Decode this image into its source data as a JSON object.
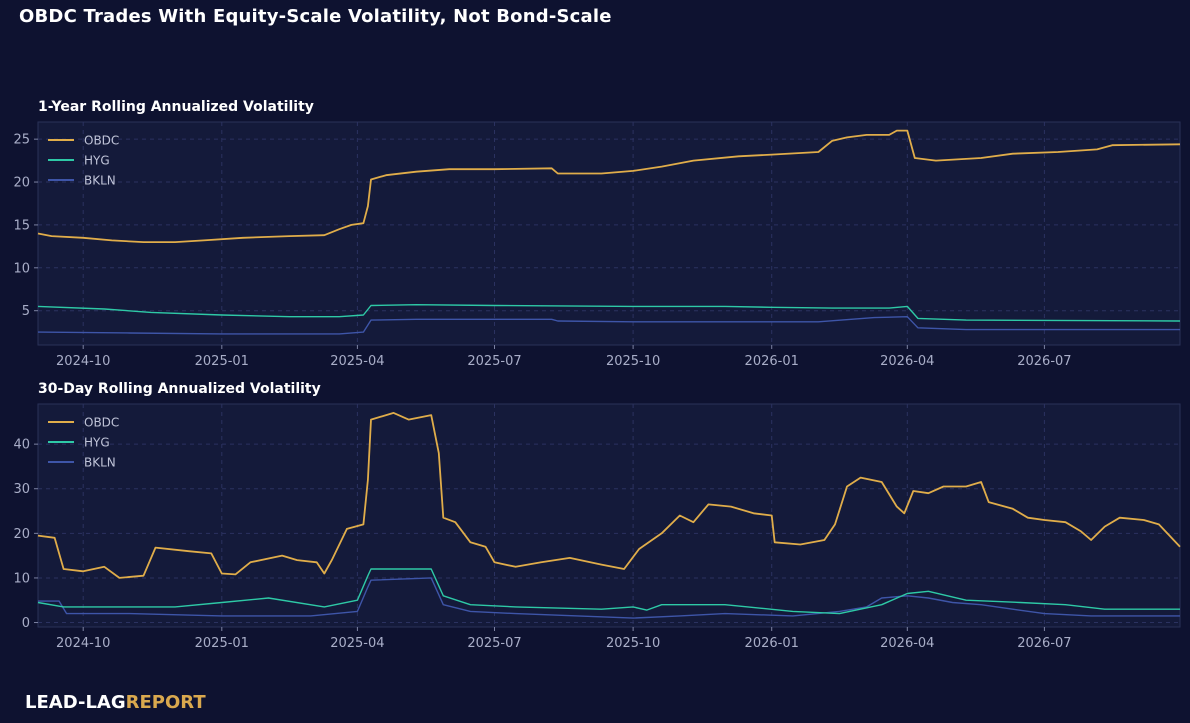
{
  "title": "OBDC Trades With Equity-Scale Volatility, Not Bond-Scale",
  "brand": {
    "part1": "LEAD-LAG",
    "part2": "REPORT"
  },
  "colors": {
    "background": "#0e1230",
    "plot_background": "#141a3a",
    "OBDC": "#e0ad4a",
    "HYG": "#2ec9a6",
    "BKLN": "#3e55a8"
  },
  "chart_data": [
    {
      "type": "line",
      "title": "1-Year Rolling Annualized Volatility",
      "xlabel": "",
      "ylabel": "",
      "x_range": [
        "2024-09-01",
        "2026-09-29"
      ],
      "ylim": [
        1,
        27
      ],
      "y_ticks": [
        5,
        10,
        15,
        20,
        25
      ],
      "x_ticks": [
        "2024-10",
        "2025-01",
        "2025-04",
        "2025-07",
        "2025-10",
        "2026-01",
        "2026-04",
        "2026-07"
      ],
      "grid": true,
      "legend": "top-left",
      "series": [
        {
          "name": "OBDC",
          "points": [
            [
              "2024-09-01",
              14.0
            ],
            [
              "2024-09-10",
              13.7
            ],
            [
              "2024-10-01",
              13.5
            ],
            [
              "2024-10-20",
              13.2
            ],
            [
              "2024-11-10",
              13.0
            ],
            [
              "2024-12-01",
              13.0
            ],
            [
              "2024-12-20",
              13.2
            ],
            [
              "2025-01-15",
              13.5
            ],
            [
              "2025-02-15",
              13.7
            ],
            [
              "2025-03-10",
              13.8
            ],
            [
              "2025-03-20",
              14.5
            ],
            [
              "2025-03-28",
              15.0
            ],
            [
              "2025-04-05",
              15.2
            ],
            [
              "2025-04-08",
              17.2
            ],
            [
              "2025-04-10",
              20.3
            ],
            [
              "2025-04-20",
              20.8
            ],
            [
              "2025-05-10",
              21.2
            ],
            [
              "2025-06-01",
              21.5
            ],
            [
              "2025-07-01",
              21.5
            ],
            [
              "2025-08-08",
              21.6
            ],
            [
              "2025-08-12",
              21.0
            ],
            [
              "2025-09-10",
              21.0
            ],
            [
              "2025-10-01",
              21.3
            ],
            [
              "2025-10-20",
              21.8
            ],
            [
              "2025-11-10",
              22.5
            ],
            [
              "2025-12-10",
              23.0
            ],
            [
              "2026-01-01",
              23.2
            ],
            [
              "2026-02-01",
              23.5
            ],
            [
              "2026-02-10",
              24.8
            ],
            [
              "2026-02-20",
              25.2
            ],
            [
              "2026-03-05",
              25.5
            ],
            [
              "2026-03-20",
              25.5
            ],
            [
              "2026-03-25",
              26.0
            ],
            [
              "2026-04-01",
              26.0
            ],
            [
              "2026-04-06",
              22.8
            ],
            [
              "2026-04-20",
              22.5
            ],
            [
              "2026-05-20",
              22.8
            ],
            [
              "2026-06-10",
              23.3
            ],
            [
              "2026-07-10",
              23.5
            ],
            [
              "2026-08-05",
              23.8
            ],
            [
              "2026-08-15",
              24.3
            ],
            [
              "2026-09-29",
              24.4
            ]
          ]
        },
        {
          "name": "HYG",
          "points": [
            [
              "2024-09-01",
              5.5
            ],
            [
              "2024-10-15",
              5.2
            ],
            [
              "2024-11-15",
              4.8
            ],
            [
              "2025-01-01",
              4.5
            ],
            [
              "2025-02-15",
              4.3
            ],
            [
              "2025-03-20",
              4.3
            ],
            [
              "2025-04-05",
              4.5
            ],
            [
              "2025-04-10",
              5.6
            ],
            [
              "2025-05-10",
              5.7
            ],
            [
              "2025-07-01",
              5.6
            ],
            [
              "2025-10-01",
              5.5
            ],
            [
              "2025-12-01",
              5.5
            ],
            [
              "2026-01-01",
              5.4
            ],
            [
              "2026-02-10",
              5.3
            ],
            [
              "2026-03-20",
              5.3
            ],
            [
              "2026-04-01",
              5.5
            ],
            [
              "2026-04-08",
              4.1
            ],
            [
              "2026-05-10",
              3.9
            ],
            [
              "2026-09-29",
              3.8
            ]
          ]
        },
        {
          "name": "BKLN",
          "points": [
            [
              "2024-09-01",
              2.5
            ],
            [
              "2024-11-01",
              2.4
            ],
            [
              "2025-01-01",
              2.3
            ],
            [
              "2025-03-20",
              2.3
            ],
            [
              "2025-04-05",
              2.5
            ],
            [
              "2025-04-10",
              3.9
            ],
            [
              "2025-05-10",
              4.0
            ],
            [
              "2025-08-08",
              4.0
            ],
            [
              "2025-08-12",
              3.8
            ],
            [
              "2025-10-01",
              3.7
            ],
            [
              "2026-02-01",
              3.7
            ],
            [
              "2026-03-10",
              4.2
            ],
            [
              "2026-04-01",
              4.3
            ],
            [
              "2026-04-08",
              3.0
            ],
            [
              "2026-05-10",
              2.8
            ],
            [
              "2026-09-29",
              2.8
            ]
          ]
        }
      ]
    },
    {
      "type": "line",
      "title": "30-Day Rolling Annualized Volatility",
      "xlabel": "",
      "ylabel": "",
      "x_range": [
        "2024-09-01",
        "2026-09-29"
      ],
      "ylim": [
        -1,
        49
      ],
      "y_ticks": [
        0,
        10,
        20,
        30,
        40
      ],
      "x_ticks": [
        "2024-10",
        "2025-01",
        "2025-04",
        "2025-07",
        "2025-10",
        "2026-01",
        "2026-04",
        "2026-07"
      ],
      "grid": true,
      "legend": "top-left",
      "series": [
        {
          "name": "OBDC",
          "points": [
            [
              "2024-09-01",
              19.5
            ],
            [
              "2024-09-12",
              19.0
            ],
            [
              "2024-09-18",
              12.0
            ],
            [
              "2024-10-01",
              11.5
            ],
            [
              "2024-10-15",
              12.5
            ],
            [
              "2024-10-25",
              10.0
            ],
            [
              "2024-11-10",
              10.5
            ],
            [
              "2024-11-18",
              16.8
            ],
            [
              "2024-12-10",
              16.0
            ],
            [
              "2024-12-25",
              15.5
            ],
            [
              "2025-01-01",
              11.0
            ],
            [
              "2025-01-10",
              10.8
            ],
            [
              "2025-01-20",
              13.5
            ],
            [
              "2025-02-10",
              15.0
            ],
            [
              "2025-02-20",
              14.0
            ],
            [
              "2025-03-05",
              13.5
            ],
            [
              "2025-03-10",
              11.0
            ],
            [
              "2025-03-15",
              14.0
            ],
            [
              "2025-03-25",
              21.0
            ],
            [
              "2025-04-05",
              22.0
            ],
            [
              "2025-04-08",
              32.0
            ],
            [
              "2025-04-10",
              45.5
            ],
            [
              "2025-04-25",
              47.0
            ],
            [
              "2025-05-05",
              45.5
            ],
            [
              "2025-05-20",
              46.5
            ],
            [
              "2025-05-25",
              38.0
            ],
            [
              "2025-05-28",
              23.5
            ],
            [
              "2025-06-05",
              22.5
            ],
            [
              "2025-06-15",
              18.0
            ],
            [
              "2025-06-25",
              17.0
            ],
            [
              "2025-07-01",
              13.5
            ],
            [
              "2025-07-15",
              12.5
            ],
            [
              "2025-08-01",
              13.5
            ],
            [
              "2025-08-20",
              14.5
            ],
            [
              "2025-09-10",
              13.0
            ],
            [
              "2025-09-25",
              12.0
            ],
            [
              "2025-10-05",
              16.5
            ],
            [
              "2025-10-20",
              20.0
            ],
            [
              "2025-11-01",
              24.0
            ],
            [
              "2025-11-10",
              22.5
            ],
            [
              "2025-11-20",
              26.5
            ],
            [
              "2025-12-05",
              26.0
            ],
            [
              "2025-12-20",
              24.5
            ],
            [
              "2026-01-01",
              24.0
            ],
            [
              "2026-01-03",
              18.0
            ],
            [
              "2026-01-20",
              17.5
            ],
            [
              "2026-02-05",
              18.5
            ],
            [
              "2026-02-12",
              22.0
            ],
            [
              "2026-02-20",
              30.5
            ],
            [
              "2026-03-01",
              32.5
            ],
            [
              "2026-03-15",
              31.5
            ],
            [
              "2026-03-25",
              26.0
            ],
            [
              "2026-03-30",
              24.5
            ],
            [
              "2026-04-05",
              29.5
            ],
            [
              "2026-04-15",
              29.0
            ],
            [
              "2026-04-25",
              30.5
            ],
            [
              "2026-05-10",
              30.5
            ],
            [
              "2026-05-20",
              31.5
            ],
            [
              "2026-05-25",
              27.0
            ],
            [
              "2026-06-10",
              25.5
            ],
            [
              "2026-06-20",
              23.5
            ],
            [
              "2026-07-01",
              23.0
            ],
            [
              "2026-07-15",
              22.5
            ],
            [
              "2026-07-25",
              20.5
            ],
            [
              "2026-08-01",
              18.5
            ],
            [
              "2026-08-10",
              21.5
            ],
            [
              "2026-08-20",
              23.5
            ],
            [
              "2026-09-05",
              23.0
            ],
            [
              "2026-09-15",
              22.0
            ],
            [
              "2026-09-29",
              17.0
            ]
          ]
        },
        {
          "name": "HYG",
          "points": [
            [
              "2024-09-01",
              4.5
            ],
            [
              "2024-09-18",
              3.5
            ],
            [
              "2024-11-01",
              3.5
            ],
            [
              "2024-12-01",
              3.5
            ],
            [
              "2025-01-01",
              4.5
            ],
            [
              "2025-02-01",
              5.5
            ],
            [
              "2025-03-10",
              3.5
            ],
            [
              "2025-04-01",
              5.0
            ],
            [
              "2025-04-08",
              10.5
            ],
            [
              "2025-04-10",
              12.0
            ],
            [
              "2025-05-20",
              12.0
            ],
            [
              "2025-05-28",
              6.0
            ],
            [
              "2025-06-15",
              4.0
            ],
            [
              "2025-07-15",
              3.5
            ],
            [
              "2025-09-10",
              3.0
            ],
            [
              "2025-10-01",
              3.5
            ],
            [
              "2025-10-10",
              2.8
            ],
            [
              "2025-10-20",
              4.0
            ],
            [
              "2025-12-01",
              4.0
            ],
            [
              "2026-01-15",
              2.5
            ],
            [
              "2026-02-15",
              2.0
            ],
            [
              "2026-03-15",
              4.0
            ],
            [
              "2026-04-01",
              6.5
            ],
            [
              "2026-04-15",
              7.0
            ],
            [
              "2026-05-10",
              5.0
            ],
            [
              "2026-06-15",
              4.5
            ],
            [
              "2026-07-15",
              4.0
            ],
            [
              "2026-08-10",
              3.0
            ],
            [
              "2026-09-29",
              3.0
            ]
          ]
        },
        {
          "name": "BKLN",
          "points": [
            [
              "2024-09-01",
              4.8
            ],
            [
              "2024-09-15",
              4.8
            ],
            [
              "2024-09-20",
              2.0
            ],
            [
              "2024-11-01",
              2.0
            ],
            [
              "2025-01-01",
              1.5
            ],
            [
              "2025-03-01",
              1.5
            ],
            [
              "2025-04-01",
              2.5
            ],
            [
              "2025-04-08",
              8.0
            ],
            [
              "2025-04-10",
              9.5
            ],
            [
              "2025-05-20",
              10.0
            ],
            [
              "2025-05-28",
              4.0
            ],
            [
              "2025-06-15",
              2.5
            ],
            [
              "2025-07-15",
              2.0
            ],
            [
              "2025-10-01",
              1.0
            ],
            [
              "2025-11-01",
              1.5
            ],
            [
              "2025-12-01",
              2.0
            ],
            [
              "2026-01-15",
              1.5
            ],
            [
              "2026-02-15",
              2.5
            ],
            [
              "2026-03-05",
              3.5
            ],
            [
              "2026-03-15",
              5.5
            ],
            [
              "2026-04-01",
              6.0
            ],
            [
              "2026-04-15",
              5.5
            ],
            [
              "2026-05-01",
              4.5
            ],
            [
              "2026-05-20",
              4.0
            ],
            [
              "2026-06-10",
              3.0
            ],
            [
              "2026-07-01",
              2.0
            ],
            [
              "2026-08-01",
              1.5
            ],
            [
              "2026-09-29",
              1.5
            ]
          ]
        }
      ]
    }
  ]
}
